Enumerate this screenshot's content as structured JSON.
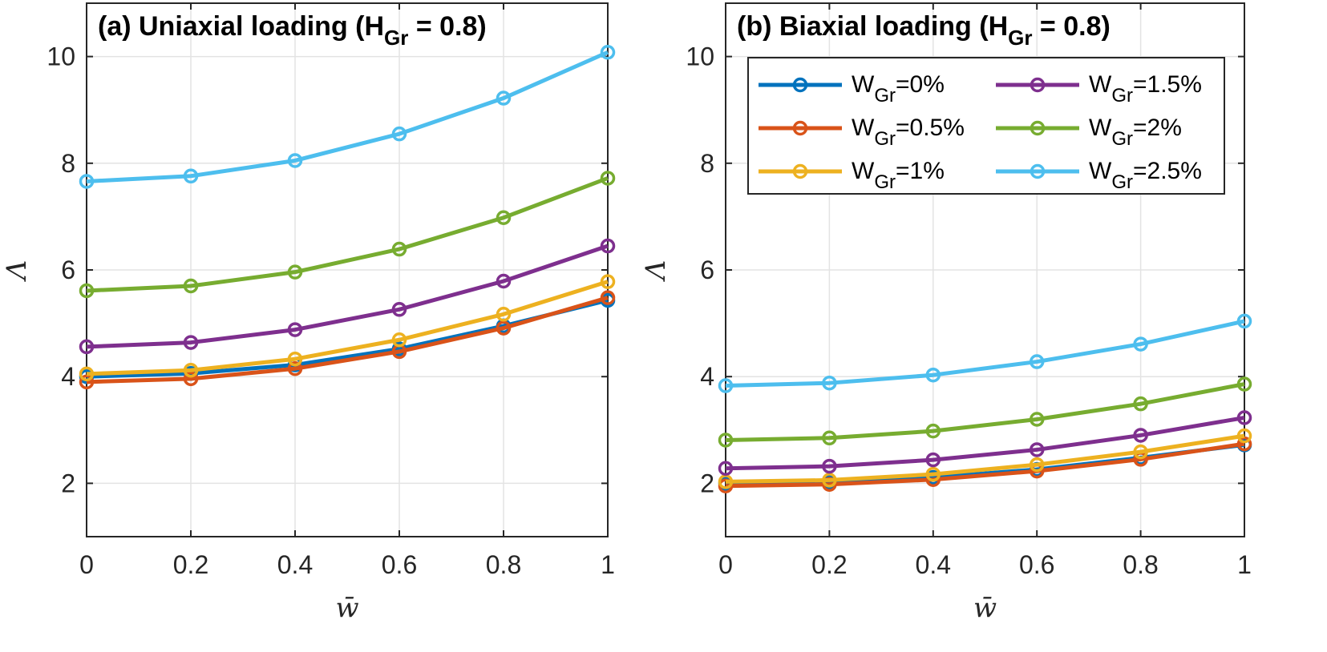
{
  "chart_data": [
    {
      "type": "line",
      "title": "(a) Uniaxial loading (H",
      "title_sub": "Gr",
      "title_tail": " = 0.8)",
      "xlabel": "w̄",
      "ylabel": "Λ",
      "xlim": [
        0,
        1
      ],
      "ylim": [
        1,
        11
      ],
      "xticks": [
        0,
        0.2,
        0.4,
        0.6,
        0.8,
        1
      ],
      "xtick_labels": [
        "0",
        "0.2",
        "0.4",
        "0.6",
        "0.8",
        "1"
      ],
      "yticks": [
        2,
        4,
        6,
        8,
        10
      ],
      "ytick_labels": [
        "2",
        "4",
        "6",
        "8",
        "10"
      ],
      "grid": true,
      "x": [
        0,
        0.2,
        0.4,
        0.6,
        0.8,
        1
      ],
      "series": [
        {
          "name": "W_Gr=0%",
          "values": [
            4.0,
            4.06,
            4.22,
            4.52,
            4.95,
            5.43
          ]
        },
        {
          "name": "W_Gr=0.5%",
          "values": [
            3.9,
            3.96,
            4.15,
            4.47,
            4.91,
            5.48
          ]
        },
        {
          "name": "W_Gr=1%",
          "values": [
            4.05,
            4.12,
            4.33,
            4.69,
            5.17,
            5.78
          ]
        },
        {
          "name": "W_Gr=1.5%",
          "values": [
            4.56,
            4.64,
            4.88,
            5.26,
            5.79,
            6.45
          ]
        },
        {
          "name": "W_Gr=2%",
          "values": [
            5.61,
            5.7,
            5.96,
            6.39,
            6.98,
            7.72
          ]
        },
        {
          "name": "W_Gr=2.5%",
          "values": [
            7.66,
            7.76,
            8.05,
            8.55,
            9.22,
            10.08
          ]
        }
      ]
    },
    {
      "type": "line",
      "title": "(b) Biaxial loading (H",
      "title_sub": "Gr",
      "title_tail": " = 0.8)",
      "xlabel": "w̄",
      "ylabel": "Λ",
      "xlim": [
        0,
        1
      ],
      "ylim": [
        1,
        11
      ],
      "xticks": [
        0,
        0.2,
        0.4,
        0.6,
        0.8,
        1
      ],
      "xtick_labels": [
        "0",
        "0.2",
        "0.4",
        "0.6",
        "0.8",
        "1"
      ],
      "yticks": [
        2,
        4,
        6,
        8,
        10
      ],
      "ytick_labels": [
        "2",
        "4",
        "6",
        "8",
        "10"
      ],
      "grid": true,
      "legend": "top-right",
      "x": [
        0,
        0.2,
        0.4,
        0.6,
        0.8,
        1
      ],
      "series": [
        {
          "name": "W_Gr=0%",
          "values": [
            2.0,
            2.03,
            2.11,
            2.26,
            2.48,
            2.72
          ]
        },
        {
          "name": "W_Gr=0.5%",
          "values": [
            1.95,
            1.98,
            2.07,
            2.23,
            2.45,
            2.74
          ]
        },
        {
          "name": "W_Gr=1%",
          "values": [
            2.03,
            2.06,
            2.17,
            2.35,
            2.59,
            2.89
          ]
        },
        {
          "name": "W_Gr=1.5%",
          "values": [
            2.28,
            2.32,
            2.44,
            2.63,
            2.9,
            3.23
          ]
        },
        {
          "name": "W_Gr=2%",
          "values": [
            2.81,
            2.85,
            2.98,
            3.2,
            3.49,
            3.86
          ]
        },
        {
          "name": "W_Gr=2.5%",
          "values": [
            3.83,
            3.88,
            4.03,
            4.28,
            4.61,
            5.04
          ]
        }
      ]
    }
  ],
  "legend": {
    "entries": [
      {
        "base": "W",
        "sub": "Gr",
        "suffix": "=0%"
      },
      {
        "base": "W",
        "sub": "Gr",
        "suffix": "=0.5%"
      },
      {
        "base": "W",
        "sub": "Gr",
        "suffix": "=1%"
      },
      {
        "base": "W",
        "sub": "Gr",
        "suffix": "=1.5%"
      },
      {
        "base": "W",
        "sub": "Gr",
        "suffix": "=2%"
      },
      {
        "base": "W",
        "sub": "Gr",
        "suffix": "=2.5%"
      }
    ]
  },
  "colors": {
    "series": [
      "#0072BD",
      "#D95319",
      "#EDB120",
      "#7E2F8E",
      "#77AC30",
      "#4DBEEE"
    ],
    "grid": "#e3e3e3",
    "axes": "#262626"
  }
}
